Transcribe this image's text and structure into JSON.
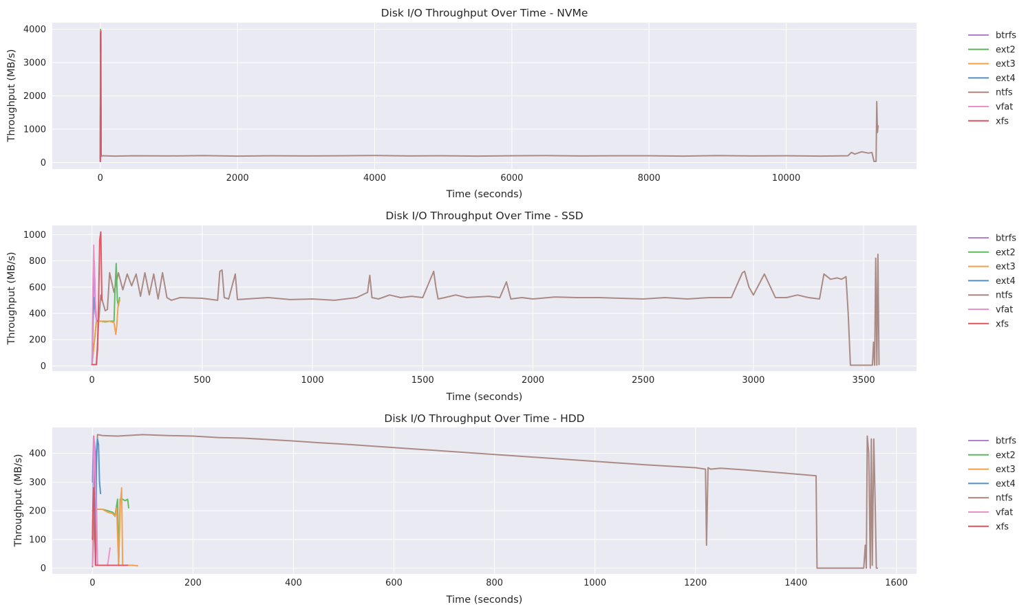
{
  "chart_data": [
    {
      "type": "line",
      "title": "Disk I/O Throughput Over Time - NVMe",
      "xlabel": "Time (seconds)",
      "ylabel": "Throughput (MB/s)",
      "xlim": [
        -700,
        11900
      ],
      "ylim": [
        -200,
        4200
      ],
      "xticks": [
        0,
        2000,
        4000,
        6000,
        8000,
        10000
      ],
      "yticks": [
        0,
        1000,
        2000,
        3000,
        4000
      ],
      "grid": true,
      "legend": "outside-right",
      "series": [
        {
          "name": "btrfs",
          "color": "#b07fd1",
          "x": [
            0,
            2,
            4,
            6,
            8,
            10
          ],
          "y": [
            30,
            2100,
            3900,
            3500,
            1500,
            200
          ]
        },
        {
          "name": "ext2",
          "color": "#5ab95a",
          "x": [
            0,
            2,
            4,
            6,
            8,
            10
          ],
          "y": [
            30,
            2600,
            4000,
            3700,
            1800,
            200
          ]
        },
        {
          "name": "ext3",
          "color": "#f59d47",
          "x": [
            0,
            2,
            4,
            6,
            8,
            10
          ],
          "y": [
            30,
            2400,
            3950,
            3600,
            1700,
            200
          ]
        },
        {
          "name": "ext4",
          "color": "#4e8fc6",
          "x": [
            0,
            2,
            4,
            6,
            8,
            10
          ],
          "y": [
            30,
            2200,
            3900,
            3400,
            1600,
            200
          ]
        },
        {
          "name": "ntfs",
          "color": "#a8857c",
          "x": [
            0,
            10,
            30,
            200,
            500,
            1000,
            1500,
            2000,
            2500,
            3000,
            3500,
            4000,
            4500,
            5000,
            5500,
            6000,
            6500,
            7000,
            7500,
            8000,
            8500,
            9000,
            9500,
            10000,
            10500,
            10900,
            10950,
            11000,
            11100,
            11200,
            11250,
            11280,
            11290,
            11310,
            11320,
            11330,
            11340
          ],
          "y": [
            200,
            180,
            200,
            190,
            200,
            195,
            205,
            190,
            200,
            195,
            200,
            210,
            195,
            200,
            190,
            200,
            205,
            195,
            200,
            200,
            190,
            205,
            195,
            200,
            190,
            200,
            300,
            250,
            320,
            280,
            300,
            30,
            30,
            30,
            1830,
            900,
            1100
          ]
        },
        {
          "name": "vfat",
          "color": "#ee8fc9",
          "x": [
            0,
            2,
            4,
            6,
            8,
            10
          ],
          "y": [
            30,
            1800,
            3300,
            3000,
            1200,
            200
          ]
        },
        {
          "name": "xfs",
          "color": "#e0515d",
          "x": [
            0,
            2,
            4,
            6,
            8,
            10,
            12
          ],
          "y": [
            30,
            1500,
            3900,
            3700,
            3950,
            1000,
            200
          ]
        }
      ]
    },
    {
      "type": "line",
      "title": "Disk I/O Throughput Over Time - SSD",
      "xlabel": "Time (seconds)",
      "ylabel": "Throughput (MB/s)",
      "xlim": [
        -180,
        3740
      ],
      "ylim": [
        -40,
        1070
      ],
      "xticks": [
        0,
        500,
        1000,
        1500,
        2000,
        2500,
        3000,
        3500
      ],
      "yticks": [
        0,
        200,
        400,
        600,
        800,
        1000
      ],
      "grid": true,
      "legend": "outside-right",
      "series": [
        {
          "name": "btrfs",
          "color": "#b07fd1",
          "x": [
            0,
            5,
            10,
            15,
            20
          ],
          "y": [
            10,
            400,
            800,
            500,
            350
          ]
        },
        {
          "name": "ext2",
          "color": "#5ab95a",
          "x": [
            0,
            20,
            40,
            60,
            80,
            100,
            105,
            110,
            115,
            120,
            125
          ],
          "y": [
            10,
            340,
            340,
            335,
            340,
            340,
            600,
            780,
            500,
            460,
            520
          ]
        },
        {
          "name": "ext3",
          "color": "#f59d47",
          "x": [
            0,
            20,
            40,
            60,
            80,
            100,
            108,
            112,
            118,
            122,
            126
          ],
          "y": [
            10,
            340,
            340,
            340,
            340,
            330,
            240,
            300,
            450,
            480,
            500
          ]
        },
        {
          "name": "ext4",
          "color": "#4e8fc6",
          "x": [
            0,
            5,
            10,
            15,
            20,
            25
          ],
          "y": [
            10,
            380,
            520,
            400,
            350,
            340
          ]
        },
        {
          "name": "ntfs",
          "color": "#a8857c",
          "x": [
            0,
            20,
            30,
            40,
            60,
            70,
            80,
            100,
            120,
            140,
            160,
            180,
            200,
            220,
            240,
            260,
            280,
            300,
            320,
            340,
            360,
            400,
            500,
            570,
            580,
            590,
            600,
            620,
            650,
            660,
            700,
            800,
            900,
            1000,
            1100,
            1200,
            1250,
            1260,
            1270,
            1300,
            1350,
            1400,
            1450,
            1500,
            1550,
            1560,
            1570,
            1600,
            1650,
            1700,
            1800,
            1850,
            1880,
            1900,
            1950,
            2000,
            2100,
            2200,
            2300,
            2400,
            2500,
            2600,
            2700,
            2800,
            2900,
            2950,
            2960,
            2980,
            3000,
            3050,
            3100,
            3150,
            3200,
            3250,
            3300,
            3320,
            3350,
            3380,
            3400,
            3420,
            3430,
            3440,
            3450,
            3500,
            3540,
            3545,
            3550,
            3555,
            3560,
            3565,
            3570
          ],
          "y": [
            10,
            10,
            330,
            540,
            420,
            430,
            710,
            560,
            710,
            580,
            700,
            610,
            700,
            530,
            710,
            540,
            700,
            510,
            710,
            520,
            500,
            520,
            515,
            500,
            720,
            730,
            520,
            510,
            700,
            505,
            510,
            520,
            505,
            510,
            500,
            520,
            560,
            690,
            520,
            510,
            540,
            520,
            530,
            520,
            720,
            600,
            510,
            520,
            540,
            520,
            530,
            520,
            640,
            510,
            520,
            510,
            525,
            520,
            520,
            515,
            510,
            520,
            510,
            520,
            520,
            710,
            720,
            600,
            540,
            700,
            520,
            520,
            540,
            520,
            510,
            700,
            660,
            670,
            660,
            680,
            400,
            5,
            5,
            5,
            5,
            180,
            5,
            820,
            5,
            850,
            10
          ]
        },
        {
          "name": "vfat",
          "color": "#ee8fc9",
          "x": [
            0,
            4,
            8,
            12,
            16,
            20
          ],
          "y": [
            10,
            600,
            920,
            700,
            400,
            340
          ]
        },
        {
          "name": "xfs",
          "color": "#e0515d",
          "x": [
            0,
            5,
            20,
            25,
            30,
            35,
            40,
            45
          ],
          "y": [
            10,
            10,
            10,
            120,
            500,
            960,
            1020,
            500
          ]
        }
      ]
    },
    {
      "type": "line",
      "title": "Disk I/O Throughput Over Time - HDD",
      "xlabel": "Time (seconds)",
      "ylabel": "Throughput (MB/s)",
      "xlim": [
        -80,
        1640
      ],
      "ylim": [
        -20,
        490
      ],
      "xticks": [
        0,
        200,
        400,
        600,
        800,
        1000,
        1200,
        1400,
        1600
      ],
      "yticks": [
        0,
        100,
        200,
        300,
        400
      ],
      "grid": true,
      "legend": "outside-right",
      "series": [
        {
          "name": "btrfs",
          "color": "#b07fd1",
          "x": [
            0,
            2,
            4,
            6,
            8,
            10
          ],
          "y": [
            300,
            460,
            440,
            400,
            200,
            10
          ]
        },
        {
          "name": "ext2",
          "color": "#5ab95a",
          "x": [
            0,
            5,
            10,
            20,
            30,
            40,
            45,
            50,
            52,
            55,
            60,
            65,
            70,
            72
          ],
          "y": [
            200,
            210,
            205,
            205,
            200,
            195,
            185,
            240,
            10,
            240,
            240,
            235,
            240,
            210
          ]
        },
        {
          "name": "ext3",
          "color": "#f59d47",
          "x": [
            0,
            5,
            10,
            20,
            30,
            40,
            45,
            48,
            52,
            55,
            58,
            60,
            62,
            65,
            70,
            80,
            90
          ],
          "y": [
            200,
            210,
            205,
            205,
            195,
            190,
            180,
            210,
            10,
            215,
            280,
            10,
            10,
            10,
            10,
            10,
            8
          ]
        },
        {
          "name": "ext4",
          "color": "#4e8fc6",
          "x": [
            0,
            2,
            4,
            6,
            8,
            10,
            12,
            14,
            16
          ],
          "y": [
            100,
            380,
            360,
            10,
            400,
            450,
            430,
            300,
            260
          ]
        },
        {
          "name": "ntfs",
          "color": "#a8857c",
          "x": [
            0,
            10,
            20,
            50,
            100,
            150,
            200,
            250,
            300,
            350,
            400,
            450,
            500,
            550,
            600,
            650,
            700,
            750,
            800,
            850,
            900,
            950,
            1000,
            1050,
            1100,
            1150,
            1200,
            1220,
            1222,
            1225,
            1230,
            1250,
            1300,
            1350,
            1400,
            1440,
            1442,
            1450,
            1500,
            1535,
            1538,
            1540,
            1542,
            1545,
            1548,
            1550,
            1552,
            1555,
            1558,
            1560,
            1562
          ],
          "y": [
            5,
            465,
            462,
            460,
            465,
            462,
            460,
            455,
            453,
            448,
            443,
            437,
            432,
            426,
            420,
            414,
            408,
            402,
            396,
            390,
            384,
            378,
            372,
            366,
            360,
            355,
            350,
            345,
            80,
            350,
            345,
            348,
            342,
            335,
            328,
            322,
            0,
            0,
            0,
            0,
            80,
            0,
            460,
            400,
            0,
            450,
            10,
            450,
            200,
            0,
            0
          ]
        },
        {
          "name": "vfat",
          "color": "#ee8fc9",
          "x": [
            0,
            3,
            6,
            10,
            20,
            30,
            35
          ],
          "y": [
            10,
            460,
            300,
            10,
            10,
            10,
            70
          ]
        },
        {
          "name": "xfs",
          "color": "#e0515d",
          "x": [
            0,
            2,
            4,
            6,
            10,
            20,
            30,
            40,
            50,
            60,
            70
          ],
          "y": [
            100,
            280,
            200,
            10,
            10,
            10,
            10,
            10,
            10,
            10,
            10
          ]
        }
      ]
    }
  ]
}
